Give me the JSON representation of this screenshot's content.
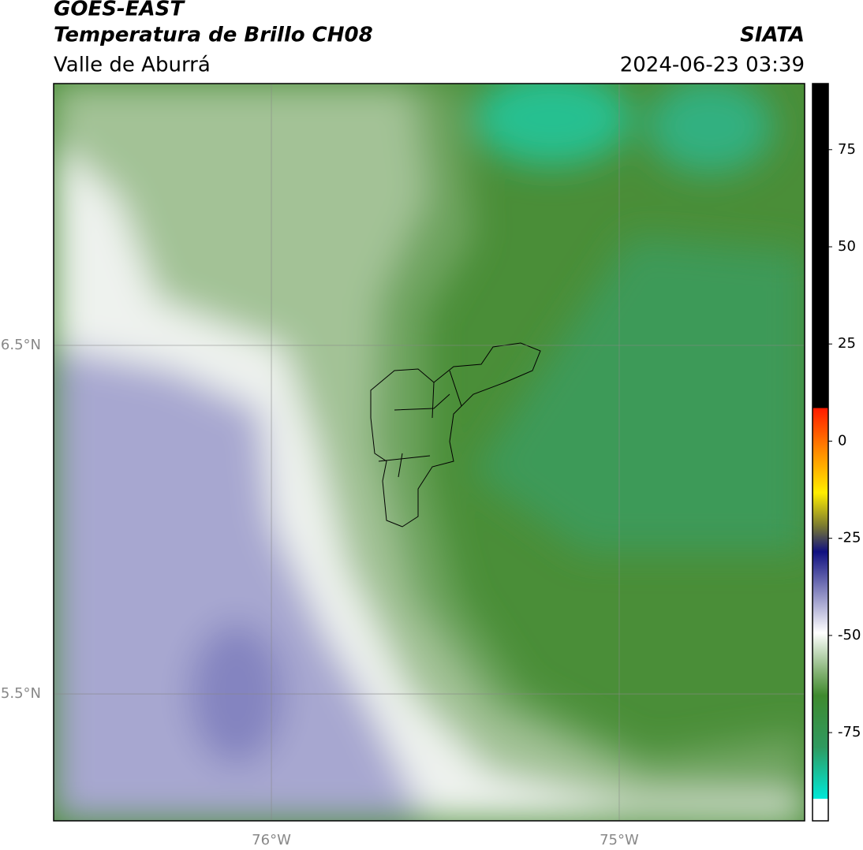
{
  "header": {
    "title": "GOES-EAST",
    "subtitle": "Temperatura de Brillo CH08",
    "region": "Valle de Aburrá",
    "source": "SIATA",
    "datetime": "2024-06-23 03:39"
  },
  "map": {
    "lon_range": [
      -76.626,
      -74.467
    ],
    "lat_range": [
      5.136,
      7.251
    ],
    "lat_ticks": [
      {
        "value": 6.5,
        "label": "6.5°N"
      },
      {
        "value": 5.5,
        "label": "5.5°N"
      }
    ],
    "lon_ticks": [
      {
        "value": -76,
        "label": "76°W"
      },
      {
        "value": -75,
        "label": "75°W"
      }
    ]
  },
  "colorbar": {
    "range": [
      -97.7,
      92
    ],
    "ticks": [
      75,
      50,
      25,
      0,
      -25,
      -50,
      -75
    ]
  }
}
